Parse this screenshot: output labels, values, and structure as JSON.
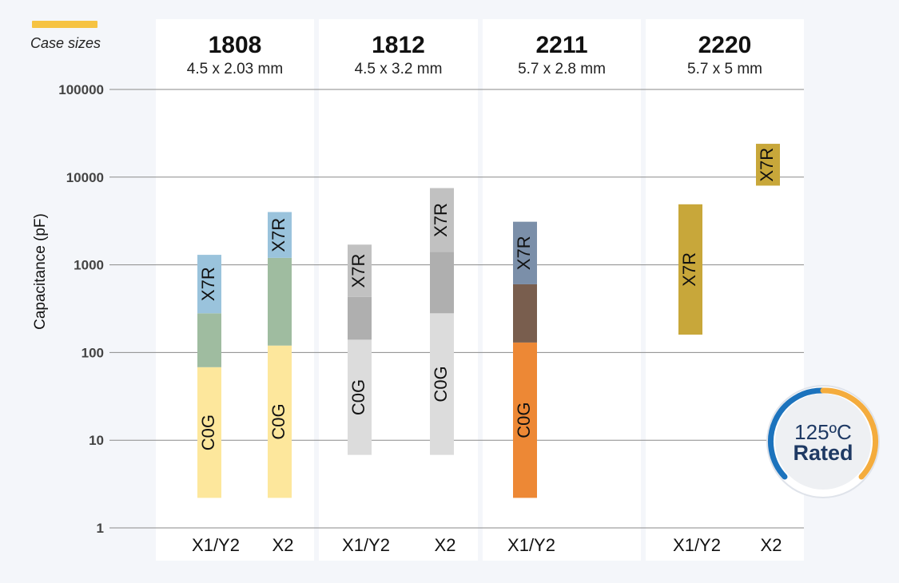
{
  "legend": {
    "label": "Case sizes",
    "color": "#f6c342"
  },
  "badge": {
    "line1": "125ºC",
    "line2": "Rated"
  },
  "chart_data": {
    "type": "bar",
    "subtype": "floating-range-log",
    "ylabel": "Capacitance  (pF)",
    "yscale": "log",
    "ylim": [
      1,
      100000
    ],
    "yticks": [
      1,
      10,
      100,
      1000,
      10000,
      100000
    ],
    "grid": true,
    "case_sizes": [
      {
        "name": "1808",
        "dims": "4.5 x 2.03 mm",
        "bars": [
          {
            "rating": "X1/Y2",
            "segments": [
              {
                "dielectric": "C0G",
                "label": "C0G",
                "min": 2.2,
                "max": 68,
                "color": "#fde79c"
              },
              {
                "dielectric": "",
                "label": "",
                "min": 68,
                "max": 280,
                "color": "#9fbca0"
              },
              {
                "dielectric": "X7R",
                "label": "X7R",
                "min": 280,
                "max": 1300,
                "color": "#9ac3dc"
              }
            ]
          },
          {
            "rating": "X2",
            "segments": [
              {
                "dielectric": "C0G",
                "label": "C0G",
                "min": 2.2,
                "max": 120,
                "color": "#fde79c"
              },
              {
                "dielectric": "",
                "label": "",
                "min": 120,
                "max": 1200,
                "color": "#9fbca0"
              },
              {
                "dielectric": "X7R",
                "label": "X7R",
                "min": 1200,
                "max": 4000,
                "color": "#9ac3dc"
              }
            ]
          }
        ]
      },
      {
        "name": "1812",
        "dims": "4.5 x 3.2 mm",
        "bars": [
          {
            "rating": "X1/Y2",
            "segments": [
              {
                "dielectric": "C0G",
                "label": "C0G",
                "min": 6.8,
                "max": 140,
                "color": "#dcdcdc"
              },
              {
                "dielectric": "",
                "label": "",
                "min": 140,
                "max": 430,
                "color": "#afafaf"
              },
              {
                "dielectric": "X7R",
                "label": "X7R",
                "min": 430,
                "max": 1700,
                "color": "#c1c1c1"
              }
            ]
          },
          {
            "rating": "X2",
            "segments": [
              {
                "dielectric": "C0G",
                "label": "C0G",
                "min": 6.8,
                "max": 280,
                "color": "#dcdcdc"
              },
              {
                "dielectric": "",
                "label": "",
                "min": 280,
                "max": 1400,
                "color": "#afafaf"
              },
              {
                "dielectric": "X7R",
                "label": "X7R",
                "min": 1400,
                "max": 7500,
                "color": "#c1c1c1"
              }
            ]
          }
        ]
      },
      {
        "name": "2211",
        "dims": "5.7 x 2.8 mm",
        "bars": [
          {
            "rating": "X1/Y2",
            "segments": [
              {
                "dielectric": "C0G",
                "label": "C0G",
                "min": 2.2,
                "max": 130,
                "color": "#ed8835"
              },
              {
                "dielectric": "",
                "label": "",
                "min": 130,
                "max": 600,
                "color": "#795e4e"
              },
              {
                "dielectric": "X7R",
                "label": "X7R",
                "min": 600,
                "max": 3100,
                "color": "#7b8fa9"
              }
            ]
          }
        ]
      },
      {
        "name": "2220",
        "dims": "5.7 x 5 mm",
        "bars": [
          {
            "rating": "X1/Y2",
            "segments": [
              {
                "dielectric": "X7R",
                "label": "X7R",
                "min": 160,
                "max": 4900,
                "color": "#c8a73a"
              }
            ]
          },
          {
            "rating": "X2",
            "segments": [
              {
                "dielectric": "X7R",
                "label": "X7R",
                "min": 8000,
                "max": 24000,
                "color": "#c8a73a"
              }
            ]
          }
        ]
      }
    ]
  }
}
